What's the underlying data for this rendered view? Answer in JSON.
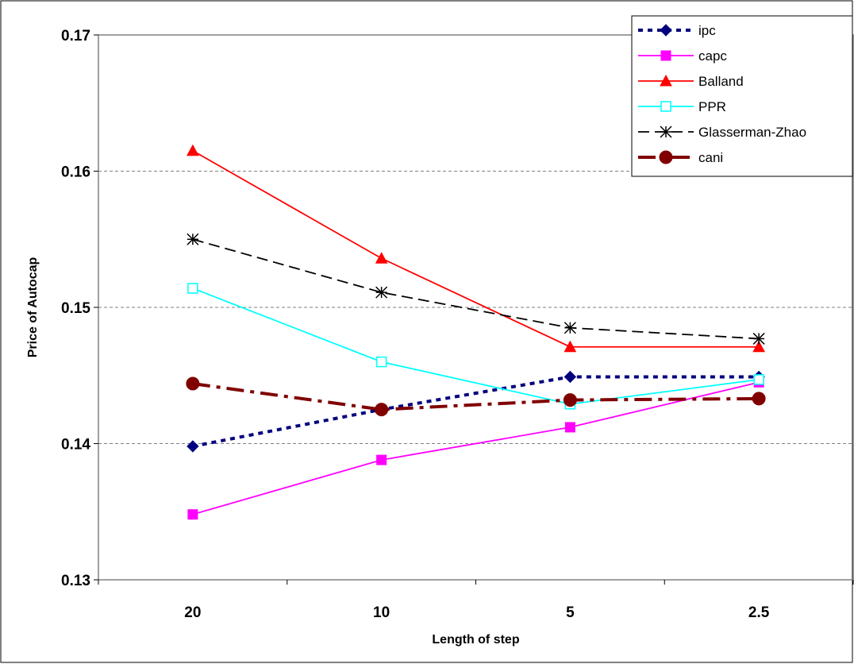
{
  "chart_data": {
    "type": "line",
    "xlabel": "Length of step",
    "ylabel": "Price of Autocap",
    "categories": [
      "20",
      "10",
      "5",
      "2.5"
    ],
    "ylim": [
      0.13,
      0.17
    ],
    "yticks": [
      0.13,
      0.14,
      0.15,
      0.16,
      0.17
    ],
    "ytick_labels": [
      "0.13",
      "0.14",
      "0.15",
      "0.16",
      "0.17"
    ],
    "grid": "horizontal dashed",
    "legend_position": "top-right",
    "series": [
      {
        "name": "ipc",
        "values": [
          0.1398,
          0.1425,
          0.1449,
          0.1449
        ],
        "color": "#00007f",
        "marker": "diamond",
        "dash": "dotted"
      },
      {
        "name": "capc",
        "values": [
          0.1348,
          0.1388,
          0.1412,
          0.1445
        ],
        "color": "#ff00ff",
        "marker": "square",
        "dash": "solid"
      },
      {
        "name": "Balland",
        "values": [
          0.1615,
          0.1536,
          0.1471,
          0.1471
        ],
        "color": "#ff0000",
        "marker": "triangle",
        "dash": "solid"
      },
      {
        "name": "PPR",
        "values": [
          0.1514,
          0.146,
          0.1429,
          0.1447
        ],
        "color": "#00ffff",
        "marker": "square-open",
        "dash": "solid"
      },
      {
        "name": "Glasserman-Zhao",
        "values": [
          0.155,
          0.1511,
          0.1485,
          0.1477
        ],
        "color": "#000000",
        "marker": "asterisk",
        "dash": "dashed"
      },
      {
        "name": "cani",
        "values": [
          0.1444,
          0.1425,
          0.1432,
          0.1433
        ],
        "color": "#800000",
        "marker": "circle",
        "dash": "dashdot"
      }
    ]
  }
}
